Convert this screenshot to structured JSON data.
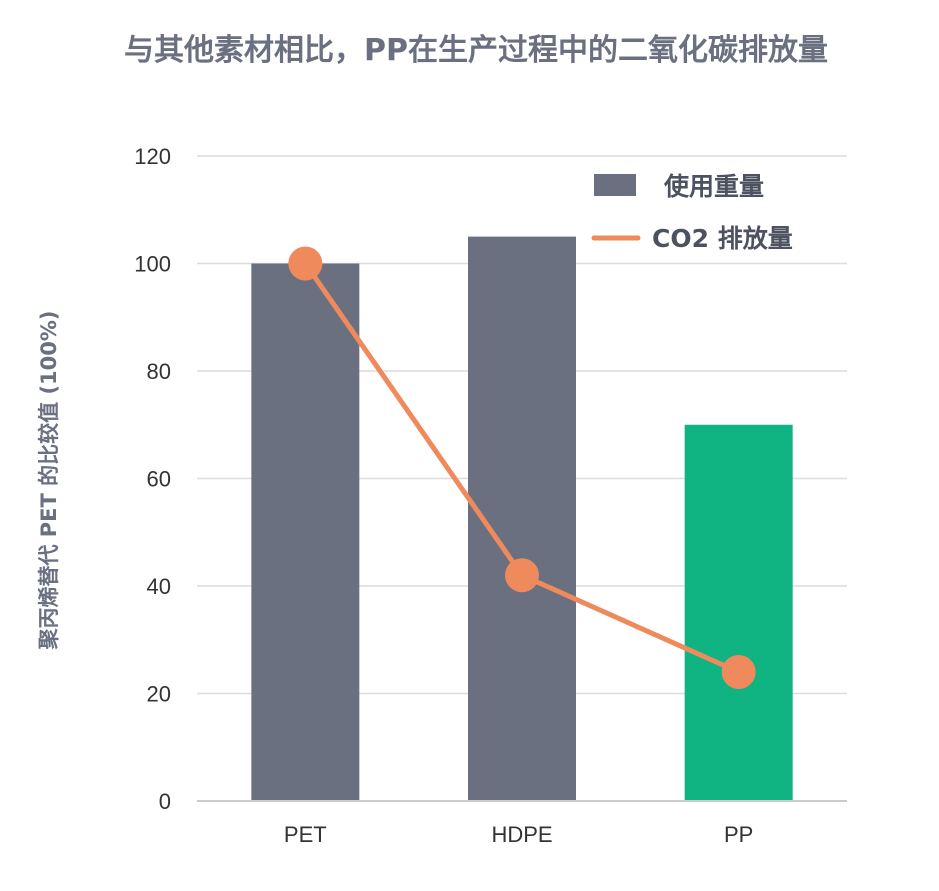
{
  "chart_data": {
    "type": "bar",
    "title": "与其他素材相比，PP在生产过程中的二氧化碳排放量",
    "ylabel": "聚丙烯替代 PET 的比较值 (100%)",
    "xlabel": "",
    "categories": [
      "PET",
      "HDPE",
      "PP"
    ],
    "ylim": [
      0,
      120
    ],
    "yticks": [
      0,
      20,
      40,
      60,
      80,
      100,
      120
    ],
    "grid": true,
    "legend_position": "top-right",
    "series": [
      {
        "name": "使用重量",
        "kind": "bar",
        "values": [
          100,
          105,
          70
        ],
        "colors": [
          "#6b7080",
          "#6b7080",
          "#10b382"
        ]
      },
      {
        "name": "CO2 排放量",
        "kind": "line",
        "values": [
          100,
          42,
          24
        ],
        "color": "#ef8a5c"
      }
    ]
  }
}
